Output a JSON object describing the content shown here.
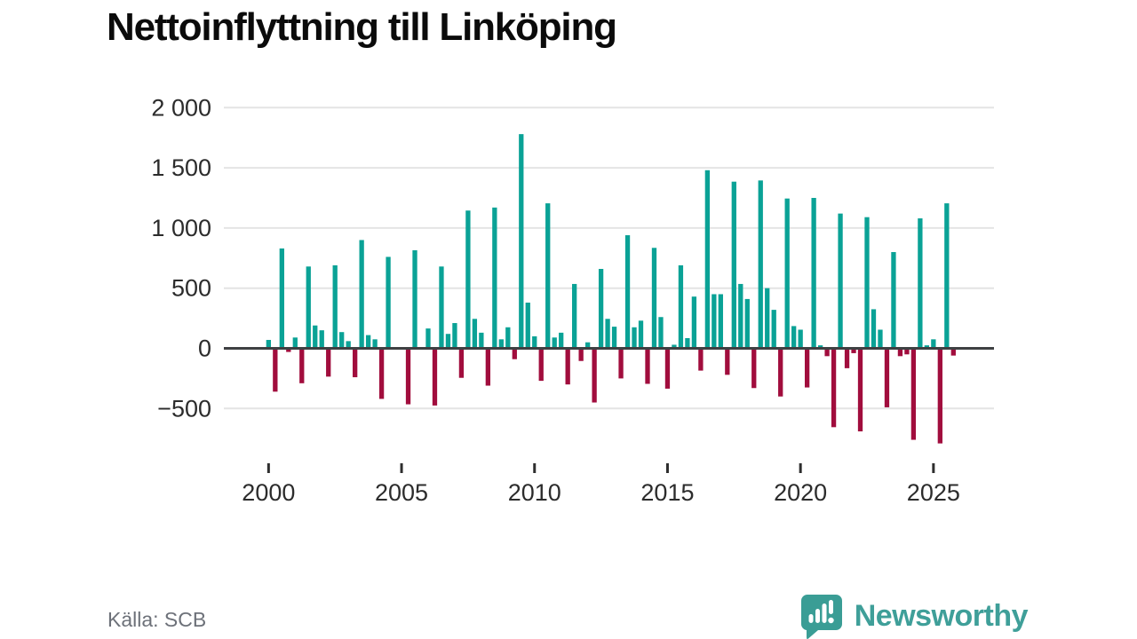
{
  "title": "Nettoinflyttning till Linköping",
  "source": "Källa: SCB",
  "brand": {
    "name": "Newsworthy",
    "color": "#3f9f99"
  },
  "colors": {
    "positive_bar": "#0aa296",
    "negative_bar": "#a10d3d",
    "grid": "#e4e4e4",
    "zero_line": "#3e4042",
    "axis_text": "#2c2c2c"
  },
  "chart_data": {
    "type": "bar",
    "title": "Nettoinflyttning till Linköping",
    "xlabel": "",
    "ylabel": "",
    "frequency": "quarterly",
    "ylim": [
      -850,
      2080
    ],
    "grid": "horizontal",
    "y_ticks": [
      2000,
      1500,
      1000,
      500,
      0,
      -500
    ],
    "y_tick_labels": [
      "2 000",
      "1 500",
      "1 000",
      "500",
      "0",
      "−500"
    ],
    "x_tick_labels": [
      "2000",
      "2005",
      "2010",
      "2015",
      "2020",
      "2025"
    ],
    "series": [
      {
        "year": "2000",
        "quarters": [
          "Q1",
          "Q2",
          "Q3",
          "Q4"
        ],
        "values": [
          70,
          -360,
          830,
          -30
        ]
      },
      {
        "year": "2001",
        "quarters": [
          "Q1",
          "Q2",
          "Q3",
          "Q4"
        ],
        "values": [
          90,
          -290,
          680,
          190
        ]
      },
      {
        "year": "2002",
        "quarters": [
          "Q1",
          "Q2",
          "Q3",
          "Q4"
        ],
        "values": [
          150,
          -235,
          690,
          135
        ]
      },
      {
        "year": "2003",
        "quarters": [
          "Q1",
          "Q2",
          "Q3",
          "Q4"
        ],
        "values": [
          60,
          -240,
          900,
          110
        ]
      },
      {
        "year": "2004",
        "quarters": [
          "Q1",
          "Q2",
          "Q3",
          "Q4"
        ],
        "values": [
          75,
          -420,
          760,
          0
        ]
      },
      {
        "year": "2005",
        "quarters": [
          "Q1",
          "Q2",
          "Q3",
          "Q4"
        ],
        "values": [
          0,
          -465,
          815,
          0
        ]
      },
      {
        "year": "2006",
        "quarters": [
          "Q1",
          "Q2",
          "Q3",
          "Q4"
        ],
        "values": [
          165,
          -475,
          680,
          120
        ]
      },
      {
        "year": "2007",
        "quarters": [
          "Q1",
          "Q2",
          "Q3",
          "Q4"
        ],
        "values": [
          210,
          -245,
          1145,
          245
        ]
      },
      {
        "year": "2008",
        "quarters": [
          "Q1",
          "Q2",
          "Q3",
          "Q4"
        ],
        "values": [
          130,
          -310,
          1170,
          75
        ]
      },
      {
        "year": "2009",
        "quarters": [
          "Q1",
          "Q2",
          "Q3",
          "Q4"
        ],
        "values": [
          175,
          -90,
          1780,
          380
        ]
      },
      {
        "year": "2010",
        "quarters": [
          "Q1",
          "Q2",
          "Q3",
          "Q4"
        ],
        "values": [
          100,
          -270,
          1205,
          90
        ]
      },
      {
        "year": "2011",
        "quarters": [
          "Q1",
          "Q2",
          "Q3",
          "Q4"
        ],
        "values": [
          130,
          -300,
          535,
          -105
        ]
      },
      {
        "year": "2012",
        "quarters": [
          "Q1",
          "Q2",
          "Q3",
          "Q4"
        ],
        "values": [
          50,
          -450,
          660,
          245
        ]
      },
      {
        "year": "2013",
        "quarters": [
          "Q1",
          "Q2",
          "Q3",
          "Q4"
        ],
        "values": [
          180,
          -250,
          940,
          175
        ]
      },
      {
        "year": "2014",
        "quarters": [
          "Q1",
          "Q2",
          "Q3",
          "Q4"
        ],
        "values": [
          230,
          -295,
          835,
          260
        ]
      },
      {
        "year": "2015",
        "quarters": [
          "Q1",
          "Q2",
          "Q3",
          "Q4"
        ],
        "values": [
          -335,
          30,
          690,
          85
        ]
      },
      {
        "year": "2016",
        "quarters": [
          "Q1",
          "Q2",
          "Q3",
          "Q4"
        ],
        "values": [
          430,
          -185,
          1480,
          450
        ]
      },
      {
        "year": "2017",
        "quarters": [
          "Q1",
          "Q2",
          "Q3",
          "Q4"
        ],
        "values": [
          450,
          -220,
          1385,
          535
        ]
      },
      {
        "year": "2018",
        "quarters": [
          "Q1",
          "Q2",
          "Q3",
          "Q4"
        ],
        "values": [
          410,
          -330,
          1395,
          500
        ]
      },
      {
        "year": "2019",
        "quarters": [
          "Q1",
          "Q2",
          "Q3",
          "Q4"
        ],
        "values": [
          320,
          -400,
          1245,
          185
        ]
      },
      {
        "year": "2020",
        "quarters": [
          "Q1",
          "Q2",
          "Q3",
          "Q4"
        ],
        "values": [
          155,
          -325,
          1250,
          25
        ]
      },
      {
        "year": "2021",
        "quarters": [
          "Q1",
          "Q2",
          "Q3",
          "Q4"
        ],
        "values": [
          -65,
          -655,
          1120,
          -165
        ]
      },
      {
        "year": "2022",
        "quarters": [
          "Q1",
          "Q2",
          "Q3",
          "Q4"
        ],
        "values": [
          -40,
          -690,
          1090,
          325
        ]
      },
      {
        "year": "2023",
        "quarters": [
          "Q1",
          "Q2",
          "Q3",
          "Q4"
        ],
        "values": [
          155,
          -490,
          800,
          -65
        ]
      },
      {
        "year": "2024",
        "quarters": [
          "Q1",
          "Q2",
          "Q3",
          "Q4"
        ],
        "values": [
          -50,
          -760,
          1080,
          25
        ]
      },
      {
        "year": "2025",
        "quarters": [
          "Q1",
          "Q2",
          "Q3",
          "Q4"
        ],
        "values": [
          75,
          -790,
          1205,
          -60
        ]
      }
    ]
  }
}
